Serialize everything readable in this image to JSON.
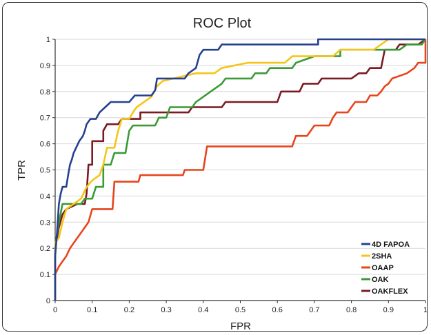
{
  "chart_data": {
    "type": "line",
    "title": "ROC Plot",
    "xlabel": "FPR",
    "ylabel": "TPR",
    "xlim": [
      0,
      1
    ],
    "ylim": [
      0,
      1
    ],
    "xticks": [
      "0",
      "0.1",
      "0.2",
      "0.3",
      "0.4",
      "0.5",
      "0.6",
      "0.7",
      "0.8",
      "0.9",
      "1"
    ],
    "yticks": [
      "0",
      "0.1",
      "0.2",
      "0.3",
      "0.4",
      "0.5",
      "0.6",
      "0.7",
      "0.8",
      "0.9",
      "1"
    ],
    "grid": "horizontal",
    "legend_position": "bottom-right",
    "series": [
      {
        "name": "4D FAPOA",
        "color": "#25408f",
        "points": [
          [
            0,
            0
          ],
          [
            0,
            0.17
          ],
          [
            0.005,
            0.26
          ],
          [
            0.01,
            0.37
          ],
          [
            0.015,
            0.41
          ],
          [
            0.02,
            0.435
          ],
          [
            0.03,
            0.435
          ],
          [
            0.035,
            0.48
          ],
          [
            0.04,
            0.52
          ],
          [
            0.045,
            0.54
          ],
          [
            0.05,
            0.565
          ],
          [
            0.055,
            0.58
          ],
          [
            0.065,
            0.61
          ],
          [
            0.075,
            0.63
          ],
          [
            0.08,
            0.65
          ],
          [
            0.085,
            0.675
          ],
          [
            0.095,
            0.695
          ],
          [
            0.11,
            0.695
          ],
          [
            0.12,
            0.72
          ],
          [
            0.135,
            0.74
          ],
          [
            0.15,
            0.76
          ],
          [
            0.2,
            0.76
          ],
          [
            0.215,
            0.785
          ],
          [
            0.26,
            0.785
          ],
          [
            0.27,
            0.805
          ],
          [
            0.275,
            0.85
          ],
          [
            0.35,
            0.85
          ],
          [
            0.36,
            0.87
          ],
          [
            0.38,
            0.89
          ],
          [
            0.39,
            0.94
          ],
          [
            0.4,
            0.96
          ],
          [
            0.44,
            0.96
          ],
          [
            0.45,
            0.98
          ],
          [
            0.71,
            0.98
          ],
          [
            0.71,
            1
          ],
          [
            1,
            1
          ]
        ]
      },
      {
        "name": "2SHA",
        "color": "#f5c518",
        "points": [
          [
            0,
            0
          ],
          [
            0,
            0.22
          ],
          [
            0.01,
            0.24
          ],
          [
            0.02,
            0.3
          ],
          [
            0.03,
            0.35
          ],
          [
            0.05,
            0.37
          ],
          [
            0.07,
            0.39
          ],
          [
            0.085,
            0.435
          ],
          [
            0.1,
            0.46
          ],
          [
            0.12,
            0.48
          ],
          [
            0.13,
            0.52
          ],
          [
            0.14,
            0.585
          ],
          [
            0.16,
            0.585
          ],
          [
            0.17,
            0.65
          ],
          [
            0.18,
            0.695
          ],
          [
            0.2,
            0.695
          ],
          [
            0.21,
            0.72
          ],
          [
            0.22,
            0.74
          ],
          [
            0.26,
            0.78
          ],
          [
            0.275,
            0.82
          ],
          [
            0.29,
            0.84
          ],
          [
            0.38,
            0.87
          ],
          [
            0.43,
            0.87
          ],
          [
            0.45,
            0.89
          ],
          [
            0.52,
            0.91
          ],
          [
            0.62,
            0.91
          ],
          [
            0.64,
            0.935
          ],
          [
            0.75,
            0.935
          ],
          [
            0.77,
            0.96
          ],
          [
            0.86,
            0.96
          ],
          [
            0.88,
            0.98
          ],
          [
            0.9,
            1
          ],
          [
            1,
            1
          ]
        ]
      },
      {
        "name": "OAAP",
        "color": "#e8441c",
        "points": [
          [
            0,
            0
          ],
          [
            0,
            0.1
          ],
          [
            0.01,
            0.13
          ],
          [
            0.02,
            0.15
          ],
          [
            0.03,
            0.17
          ],
          [
            0.04,
            0.2
          ],
          [
            0.05,
            0.22
          ],
          [
            0.06,
            0.24
          ],
          [
            0.07,
            0.26
          ],
          [
            0.08,
            0.28
          ],
          [
            0.09,
            0.3
          ],
          [
            0.1,
            0.35
          ],
          [
            0.155,
            0.35
          ],
          [
            0.16,
            0.455
          ],
          [
            0.225,
            0.455
          ],
          [
            0.23,
            0.48
          ],
          [
            0.345,
            0.48
          ],
          [
            0.35,
            0.5
          ],
          [
            0.4,
            0.5
          ],
          [
            0.41,
            0.59
          ],
          [
            0.64,
            0.59
          ],
          [
            0.65,
            0.63
          ],
          [
            0.68,
            0.63
          ],
          [
            0.69,
            0.65
          ],
          [
            0.7,
            0.67
          ],
          [
            0.74,
            0.67
          ],
          [
            0.75,
            0.7
          ],
          [
            0.76,
            0.72
          ],
          [
            0.79,
            0.72
          ],
          [
            0.8,
            0.74
          ],
          [
            0.81,
            0.76
          ],
          [
            0.84,
            0.76
          ],
          [
            0.85,
            0.785
          ],
          [
            0.87,
            0.785
          ],
          [
            0.88,
            0.8
          ],
          [
            0.89,
            0.82
          ],
          [
            0.9,
            0.83
          ],
          [
            0.91,
            0.85
          ],
          [
            0.95,
            0.87
          ],
          [
            0.97,
            0.89
          ],
          [
            0.98,
            0.91
          ],
          [
            1,
            0.91
          ],
          [
            1,
            1
          ]
        ]
      },
      {
        "name": "OAK",
        "color": "#3a9a35",
        "points": [
          [
            0,
            0
          ],
          [
            0,
            0.21
          ],
          [
            0.01,
            0.3
          ],
          [
            0.02,
            0.37
          ],
          [
            0.07,
            0.37
          ],
          [
            0.08,
            0.39
          ],
          [
            0.1,
            0.39
          ],
          [
            0.11,
            0.435
          ],
          [
            0.13,
            0.435
          ],
          [
            0.13,
            0.52
          ],
          [
            0.15,
            0.52
          ],
          [
            0.16,
            0.565
          ],
          [
            0.19,
            0.565
          ],
          [
            0.2,
            0.65
          ],
          [
            0.21,
            0.67
          ],
          [
            0.27,
            0.67
          ],
          [
            0.28,
            0.7
          ],
          [
            0.3,
            0.7
          ],
          [
            0.31,
            0.74
          ],
          [
            0.37,
            0.74
          ],
          [
            0.38,
            0.76
          ],
          [
            0.4,
            0.78
          ],
          [
            0.42,
            0.8
          ],
          [
            0.45,
            0.83
          ],
          [
            0.46,
            0.85
          ],
          [
            0.53,
            0.85
          ],
          [
            0.54,
            0.87
          ],
          [
            0.57,
            0.87
          ],
          [
            0.58,
            0.89
          ],
          [
            0.64,
            0.89
          ],
          [
            0.65,
            0.91
          ],
          [
            0.7,
            0.935
          ],
          [
            0.77,
            0.935
          ],
          [
            0.77,
            0.96
          ],
          [
            0.93,
            0.96
          ],
          [
            0.95,
            0.98
          ],
          [
            0.99,
            0.98
          ],
          [
            1,
            1
          ]
        ]
      },
      {
        "name": "OAKFLEX",
        "color": "#7a1a22",
        "points": [
          [
            0,
            0
          ],
          [
            0,
            0.2
          ],
          [
            0.01,
            0.28
          ],
          [
            0.02,
            0.33
          ],
          [
            0.03,
            0.35
          ],
          [
            0.06,
            0.37
          ],
          [
            0.08,
            0.37
          ],
          [
            0.085,
            0.41
          ],
          [
            0.09,
            0.52
          ],
          [
            0.1,
            0.52
          ],
          [
            0.1,
            0.61
          ],
          [
            0.13,
            0.61
          ],
          [
            0.13,
            0.65
          ],
          [
            0.14,
            0.675
          ],
          [
            0.17,
            0.675
          ],
          [
            0.18,
            0.695
          ],
          [
            0.23,
            0.695
          ],
          [
            0.23,
            0.72
          ],
          [
            0.36,
            0.72
          ],
          [
            0.37,
            0.74
          ],
          [
            0.45,
            0.74
          ],
          [
            0.46,
            0.76
          ],
          [
            0.6,
            0.76
          ],
          [
            0.61,
            0.8
          ],
          [
            0.66,
            0.8
          ],
          [
            0.67,
            0.83
          ],
          [
            0.71,
            0.83
          ],
          [
            0.72,
            0.85
          ],
          [
            0.8,
            0.85
          ],
          [
            0.82,
            0.87
          ],
          [
            0.84,
            0.87
          ],
          [
            0.85,
            0.89
          ],
          [
            0.88,
            0.89
          ],
          [
            0.89,
            0.96
          ],
          [
            0.92,
            0.96
          ],
          [
            0.93,
            0.98
          ],
          [
            0.98,
            0.98
          ],
          [
            1,
            1
          ]
        ]
      }
    ]
  }
}
